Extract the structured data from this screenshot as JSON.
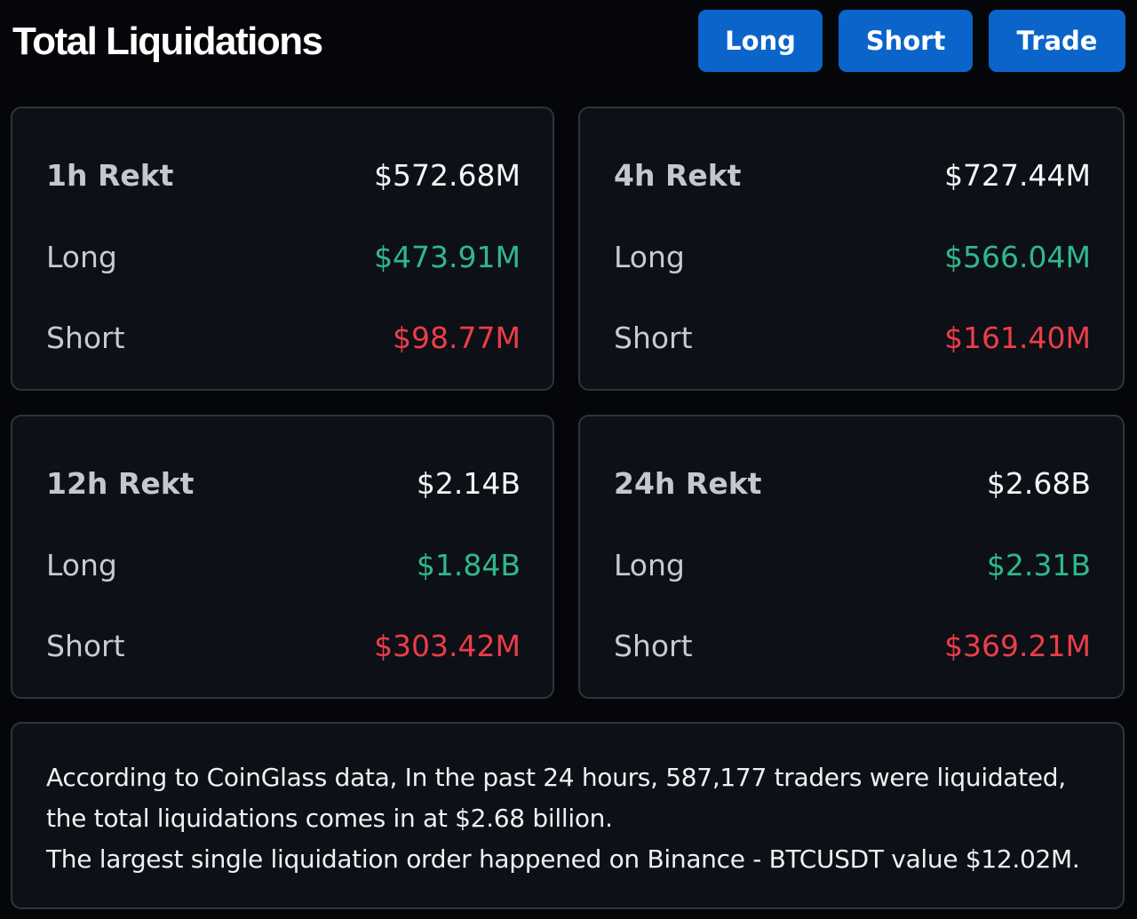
{
  "header": {
    "title": "Total Liquidations",
    "buttons": {
      "long": "Long",
      "short": "Short",
      "trade": "Trade"
    }
  },
  "cards": [
    {
      "title": "1h Rekt",
      "total": "$572.68M",
      "long_label": "Long",
      "long": "$473.91M",
      "short_label": "Short",
      "short": "$98.77M"
    },
    {
      "title": "4h Rekt",
      "total": "$727.44M",
      "long_label": "Long",
      "long": "$566.04M",
      "short_label": "Short",
      "short": "$161.40M"
    },
    {
      "title": "12h Rekt",
      "total": "$2.14B",
      "long_label": "Long",
      "long": "$1.84B",
      "short_label": "Short",
      "short": "$303.42M"
    },
    {
      "title": "24h Rekt",
      "total": "$2.68B",
      "long_label": "Long",
      "long": "$2.31B",
      "short_label": "Short",
      "short": "$369.21M"
    }
  ],
  "summary": {
    "line1": "According to CoinGlass data, In the past 24 hours, 587,177 traders were liquidated, the total liquidations comes in at $2.68 billion.",
    "line2": "The largest single liquidation order happened on Binance - BTCUSDT value $12.02M."
  },
  "colors": {
    "background": "#050609",
    "card": "#0d1016",
    "border": "#2f343c",
    "button": "#0b64c9",
    "long": "#2fb88d",
    "short": "#ec3d4a"
  }
}
